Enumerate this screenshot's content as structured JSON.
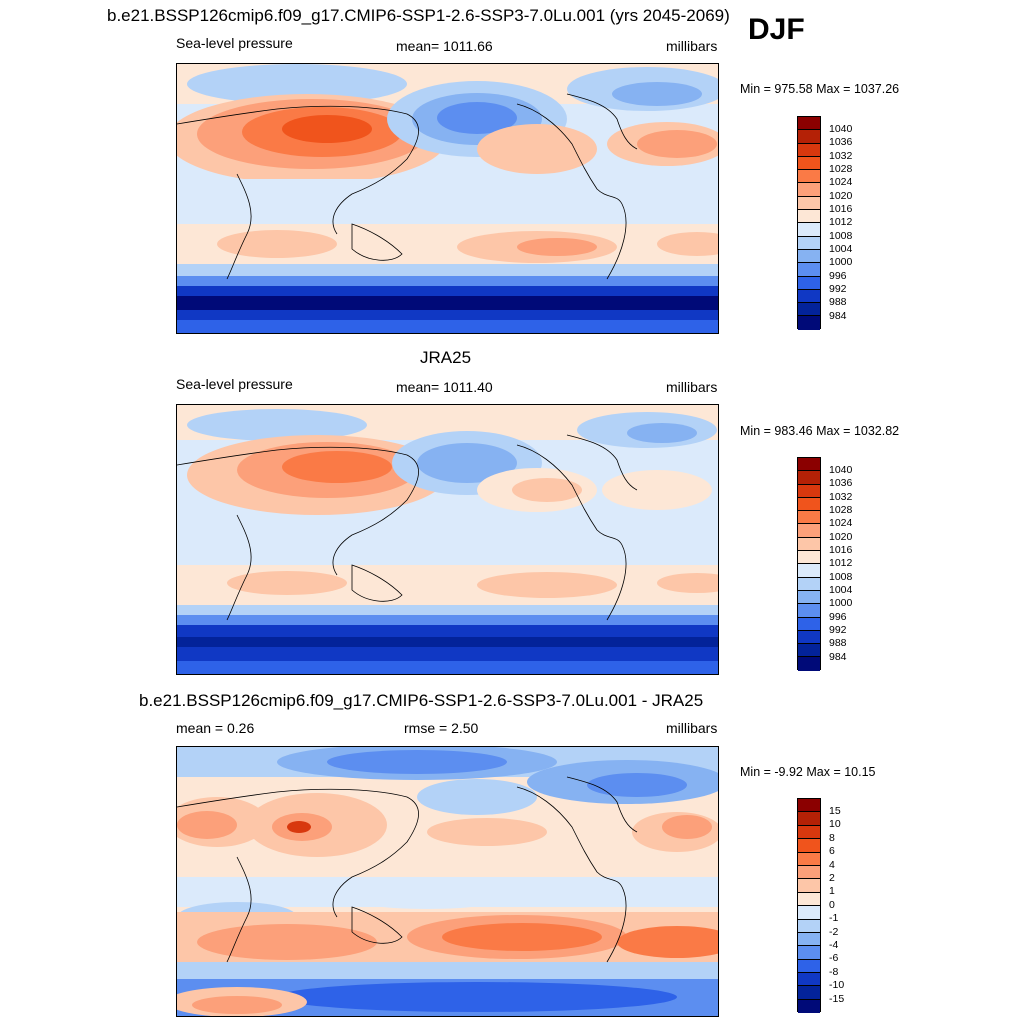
{
  "header": {
    "title": "b.e21.BSSP126cmip6.f09_g17.CMIP6-SSP1-2.6-SSP3-7.0Lu.001 (yrs 2045-2069)",
    "season": "DJF"
  },
  "panels": [
    {
      "left_label": "Sea-level pressure",
      "center_label": "mean= 1011.66",
      "right_label": "millibars",
      "minmax": "Min = 975.58 Max = 1037.26",
      "colorbar_labels": [
        "1040",
        "1036",
        "1032",
        "1028",
        "1024",
        "1020",
        "1016",
        "1012",
        "1008",
        "1004",
        "1000",
        "996",
        "992",
        "988",
        "984"
      ]
    },
    {
      "title": "JRA25",
      "left_label": "Sea-level pressure",
      "center_label": "mean= 1011.40",
      "right_label": "millibars",
      "minmax": "Min = 983.46 Max = 1032.82",
      "colorbar_labels": [
        "1040",
        "1036",
        "1032",
        "1028",
        "1024",
        "1020",
        "1016",
        "1012",
        "1008",
        "1004",
        "1000",
        "996",
        "992",
        "988",
        "984"
      ]
    },
    {
      "title": "b.e21.BSSP126cmip6.f09_g17.CMIP6-SSP1-2.6-SSP3-7.0Lu.001 - JRA25",
      "left_label": "mean =   0.26",
      "center_label": "rmse =   2.50",
      "right_label": "millibars",
      "minmax": "Min =  -9.92 Max =  10.15",
      "colorbar_labels": [
        "15",
        "10",
        "8",
        "6",
        "4",
        "2",
        "1",
        "0",
        "-1",
        "-2",
        "-4",
        "-6",
        "-8",
        "-10",
        "-15"
      ]
    }
  ],
  "colors": {
    "abs_scale": [
      "#8b0000",
      "#b42106",
      "#d8380e",
      "#f0541c",
      "#fa7a46",
      "#fca07a",
      "#fdc6a8",
      "#fde7d6",
      "#dbeafb",
      "#b3d2f7",
      "#86b2f2",
      "#5c8ef0",
      "#2e62e8",
      "#1038c4",
      "#03239a",
      "#000a78"
    ],
    "diff_scale": [
      "#8b0000",
      "#b42106",
      "#d8380e",
      "#f0541c",
      "#fa7a46",
      "#fca07a",
      "#fdc6a8",
      "#fde7d6",
      "#dbeafb",
      "#b3d2f7",
      "#86b2f2",
      "#5c8ef0",
      "#2e62e8",
      "#1038c4",
      "#03239a",
      "#000a78"
    ]
  }
}
